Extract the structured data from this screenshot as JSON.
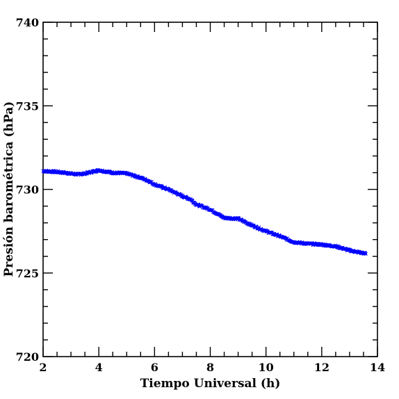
{
  "chart_data": {
    "type": "scatter",
    "title": "",
    "xlabel": "Tiempo Universal (h)",
    "ylabel": "Presión barométrica (hPa)",
    "xlim": [
      2,
      14
    ],
    "ylim": [
      720,
      740
    ],
    "x_ticks": [
      2,
      4,
      6,
      8,
      10,
      12,
      14
    ],
    "y_ticks": [
      720,
      725,
      730,
      735,
      740
    ],
    "x_tick_labels": [
      "2",
      "4",
      "6",
      "8",
      "10",
      "12",
      "14"
    ],
    "y_tick_labels": [
      "720",
      "725",
      "730",
      "735",
      "740"
    ],
    "grid": false,
    "legend": "none",
    "marker": "x",
    "color": "#0000ff",
    "series": [
      {
        "x": [
          2.0,
          2.5,
          3.0,
          3.25,
          3.5,
          4.0,
          4.5,
          5.0,
          5.5,
          5.8,
          6.0,
          6.5,
          7.0,
          7.3,
          7.5,
          8.0,
          8.5,
          9.0,
          9.5,
          10.0,
          10.5,
          11.0,
          11.5,
          12.0,
          12.5,
          13.0,
          13.6
        ],
        "y": [
          731.1,
          731.05,
          730.95,
          730.9,
          730.95,
          731.15,
          731.0,
          730.95,
          730.7,
          730.5,
          730.3,
          730.0,
          729.6,
          729.4,
          729.1,
          728.8,
          728.3,
          728.25,
          727.85,
          727.5,
          727.2,
          726.85,
          726.75,
          726.7,
          726.6,
          726.35,
          726.15
        ]
      }
    ]
  }
}
